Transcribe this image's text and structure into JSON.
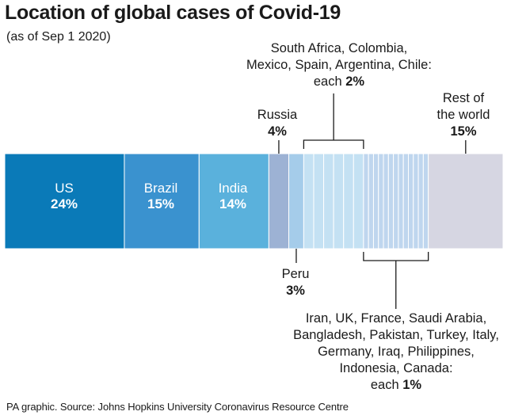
{
  "title": "Location of global cases of Covid-19",
  "subtitle": "(as of Sep 1 2020)",
  "footer": "PA graphic. Source: Johns Hopkins University Coronavirus Resource Centre",
  "colors": {
    "us": "#0a7ab8",
    "brazil": "#3a92cf",
    "india": "#5ab1dc",
    "russia": "#9db2d4",
    "peru": "#a5ccea",
    "group2": "#c4e1f3",
    "group1": "#bfd6ee",
    "rest": "#d6d6e2",
    "line": "#1a1a1a"
  },
  "chart_data": {
    "type": "bar",
    "orientation": "horizontal-stacked",
    "title": "Location of global cases of Covid-19",
    "subtitle": "(as of Sep 1 2020)",
    "unit": "%",
    "total": 100,
    "segments": [
      {
        "name": "US",
        "value": 24
      },
      {
        "name": "Brazil",
        "value": 15
      },
      {
        "name": "India",
        "value": 14
      },
      {
        "name": "Russia",
        "value": 4
      },
      {
        "name": "Peru",
        "value": 3
      },
      {
        "name": "South Africa",
        "value": 2
      },
      {
        "name": "Colombia",
        "value": 2
      },
      {
        "name": "Mexico",
        "value": 2
      },
      {
        "name": "Spain",
        "value": 2
      },
      {
        "name": "Argentina",
        "value": 2
      },
      {
        "name": "Chile",
        "value": 2
      },
      {
        "name": "Iran",
        "value": 1
      },
      {
        "name": "UK",
        "value": 1
      },
      {
        "name": "France",
        "value": 1
      },
      {
        "name": "Saudi Arabia",
        "value": 1
      },
      {
        "name": "Bangladesh",
        "value": 1
      },
      {
        "name": "Pakistan",
        "value": 1
      },
      {
        "name": "Turkey",
        "value": 1
      },
      {
        "name": "Italy",
        "value": 1
      },
      {
        "name": "Germany",
        "value": 1
      },
      {
        "name": "Iraq",
        "value": 1
      },
      {
        "name": "Philippines",
        "value": 1
      },
      {
        "name": "Indonesia",
        "value": 1
      },
      {
        "name": "Canada",
        "value": 1
      },
      {
        "name": "Rest of the world",
        "value": 15
      }
    ],
    "labels": {
      "us": {
        "name": "US",
        "pct": "24%"
      },
      "brazil": {
        "name": "Brazil",
        "pct": "15%"
      },
      "india": {
        "name": "India",
        "pct": "14%"
      },
      "russia": {
        "name": "Russia",
        "pct": "4%"
      },
      "peru": {
        "name": "Peru",
        "pct": "3%"
      },
      "rest": {
        "line1": "Rest of",
        "line2": "the world",
        "pct": "15%"
      },
      "group2": {
        "line1": "South Africa, Colombia,",
        "line2": "Mexico, Spain, Argentina, Chile:",
        "each": "each ",
        "pct": "2%"
      },
      "group1": {
        "line1": "Iran, UK, France, Saudi Arabia,",
        "line2": "Bangladesh, Pakistan, Turkey, Italy,",
        "line3": "Germany, Iraq, Philippines,",
        "line4": "Indonesia, Canada:",
        "each": "each ",
        "pct": "1%"
      }
    }
  }
}
